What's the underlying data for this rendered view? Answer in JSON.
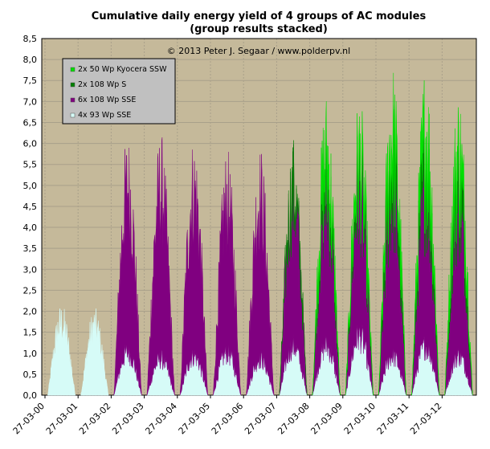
{
  "chart_data": {
    "type": "area",
    "stacked": true,
    "title": "Cumulative daily energy yield of 4 groups of AC modules",
    "subtitle": "(group results stacked)",
    "annotation": "© 2013 Peter J. Segaar / www.polderpv.nl",
    "plot_background": "#c5b99a",
    "grid": true,
    "legend_position": "top-left",
    "ylim": [
      0,
      8.5
    ],
    "y_ticks": [
      "0,0",
      "0,5",
      "1,0",
      "1,5",
      "2,0",
      "2,5",
      "3,0",
      "3,5",
      "4,0",
      "4,5",
      "5,0",
      "5,5",
      "6,0",
      "6,5",
      "7,0",
      "7,5",
      "8,0",
      "8,5"
    ],
    "x_ticks": [
      "27-03-00",
      "27-03-01",
      "27-03-02",
      "27-03-03",
      "27-03-04",
      "27-03-05",
      "27-03-06",
      "27-03-07",
      "27-03-08",
      "27-03-09",
      "27-03-10",
      "27-03-11",
      "27-03-12"
    ],
    "series": [
      {
        "name": "4x 93 Wp SSE",
        "color": "#d6fbf7",
        "values": [
          2.2,
          2.1,
          1.3,
          1.1,
          1.2,
          1.3,
          1.1,
          1.5,
          1.5,
          1.8,
          1.2,
          1.5,
          1.2
        ]
      },
      {
        "name": "6x 108 Wp SSE",
        "color": "#800080",
        "values": [
          0.0,
          0.0,
          5.0,
          5.2,
          5.0,
          4.6,
          4.9,
          4.6,
          4.4,
          4.2,
          4.8,
          4.5,
          4.4
        ]
      },
      {
        "name": "2x 108 Wp S",
        "color": "#007f00",
        "values": [
          0.0,
          0.0,
          0.0,
          0.0,
          0.0,
          0.0,
          0.0,
          0.1,
          0.7,
          0.6,
          1.1,
          1.0,
          1.0
        ]
      },
      {
        "name": "2x 50 Wp Kyocera SSW",
        "color": "#00e000",
        "values": [
          0.0,
          0.0,
          0.0,
          0.0,
          0.0,
          0.0,
          0.0,
          0.0,
          0.7,
          0.6,
          0.9,
          1.0,
          0.8
        ]
      }
    ],
    "series_note_legend_order": [
      "2x 50 Wp Kyocera SSW",
      "2x 108 Wp S",
      "6x 108 Wp SSE",
      "4x 93 Wp SSE"
    ]
  }
}
